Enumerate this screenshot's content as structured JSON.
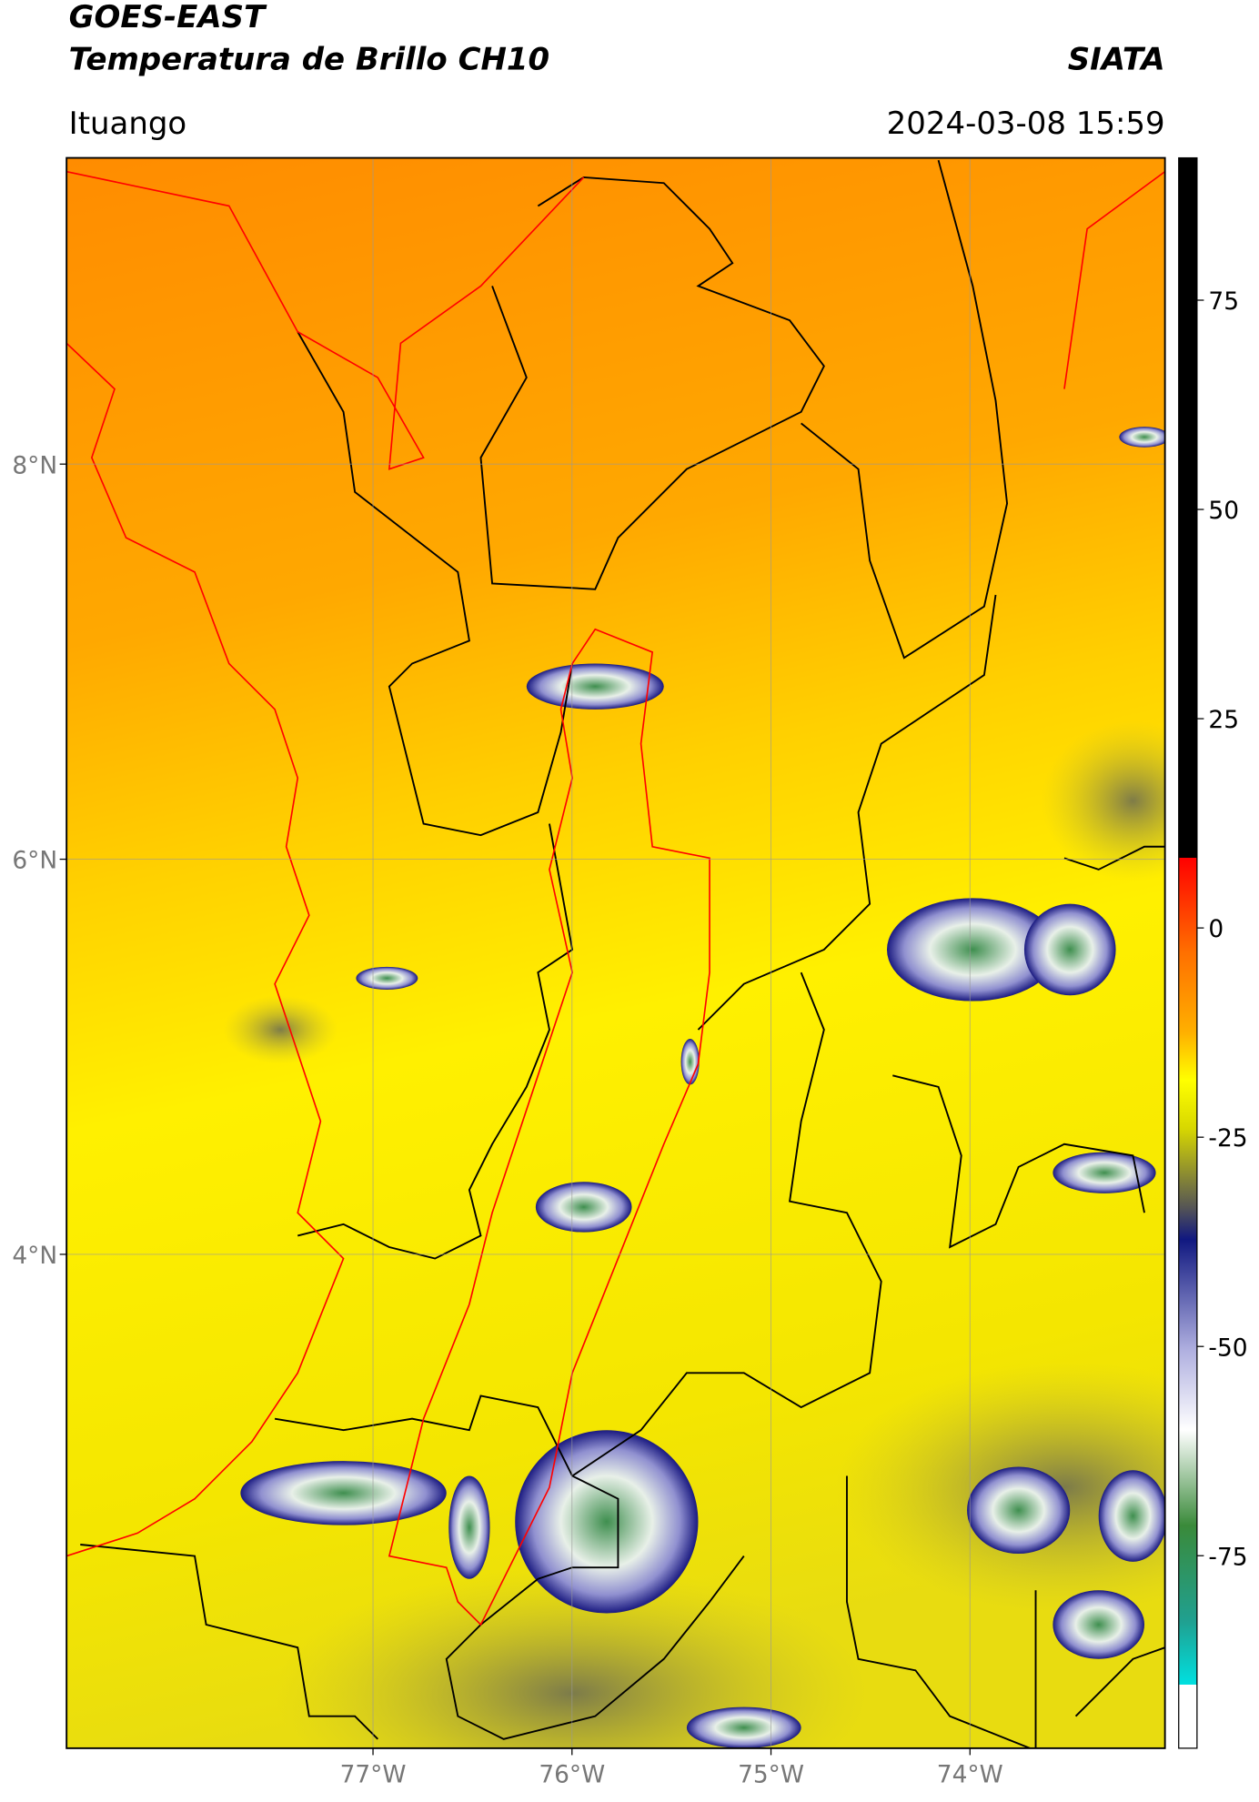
{
  "header": {
    "title_line1": "GOES-EAST",
    "title_line2": "Temperatura de Brillo CH10",
    "source": "SIATA",
    "location": "Ituango",
    "datetime": "2024-03-08 15:59"
  },
  "map": {
    "xlim": [
      -78.54,
      -73.02
    ],
    "ylim": [
      1.5,
      9.55
    ],
    "xticks": [
      {
        "value": -77,
        "label": "77°W"
      },
      {
        "value": -76,
        "label": "76°W"
      },
      {
        "value": -75,
        "label": "75°W"
      },
      {
        "value": -74,
        "label": "74°W"
      }
    ],
    "yticks": [
      {
        "value": 8,
        "label": "8°N"
      },
      {
        "value": 6,
        "label": "6°N"
      },
      {
        "value": 4,
        "label": "4°N"
      }
    ],
    "grid": true
  },
  "colorbar": {
    "lim": [
      -98,
      92
    ],
    "ticks": [
      75,
      50,
      25,
      0,
      -25,
      -50,
      -75
    ]
  }
}
